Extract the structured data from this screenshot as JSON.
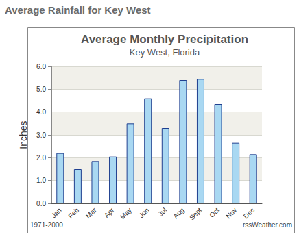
{
  "chart_data": {
    "type": "bar",
    "title": "Average Monthly Precipitation",
    "subtitle": "Key West, Florida",
    "y_label": "Inches",
    "annotations": {
      "heading": "Average Rainfall for Key West",
      "period": "1971-2000",
      "source": "rssWeather.com"
    },
    "categories": [
      "Jan",
      "Feb",
      "Mar",
      "Apr",
      "May",
      "Jun",
      "Jul",
      "Aug",
      "Sept",
      "Oct",
      "Nov",
      "Dec"
    ],
    "values": [
      2.2,
      1.5,
      1.85,
      2.05,
      3.5,
      4.6,
      3.3,
      5.4,
      5.45,
      4.35,
      2.65,
      2.15
    ],
    "color": "#a9d8f2",
    "ylim": [
      0,
      6
    ],
    "yticks": [
      {
        "value": 0,
        "label": "0.0"
      },
      {
        "value": 1,
        "label": "1.0"
      },
      {
        "value": 2,
        "label": "2.0"
      },
      {
        "value": 3,
        "label": "3.0"
      },
      {
        "value": 4,
        "label": "4.0"
      },
      {
        "value": 5,
        "label": "5.0"
      },
      {
        "value": 6,
        "label": "6.0"
      }
    ],
    "grid": true
  }
}
